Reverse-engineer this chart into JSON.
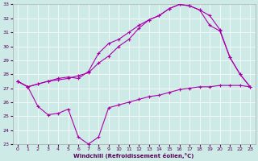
{
  "xlabel": "Windchill (Refroidissement éolien,°C)",
  "ylim": [
    23,
    33
  ],
  "xlim": [
    -0.5,
    23.5
  ],
  "yticks": [
    23,
    24,
    25,
    26,
    27,
    28,
    29,
    30,
    31,
    32,
    33
  ],
  "xticks": [
    0,
    1,
    2,
    3,
    4,
    5,
    6,
    7,
    8,
    9,
    10,
    11,
    12,
    13,
    14,
    15,
    16,
    17,
    18,
    19,
    20,
    21,
    22,
    23
  ],
  "bg_color": "#ceeae6",
  "grid_color": "#ffffff",
  "line_color": "#aa00aa",
  "line1_x": [
    0,
    1,
    2,
    3,
    4,
    5,
    6,
    7,
    8,
    9,
    10,
    11,
    12,
    13,
    14,
    15,
    16,
    17,
    18,
    19,
    20,
    21,
    22,
    23
  ],
  "line1_y": [
    27.5,
    27.1,
    27.3,
    27.5,
    27.6,
    27.7,
    27.9,
    28.1,
    28.8,
    29.3,
    30.0,
    30.5,
    31.3,
    31.9,
    32.2,
    32.7,
    33.0,
    32.9,
    32.6,
    32.2,
    31.2,
    29.2,
    28.0,
    27.1
  ],
  "line2_x": [
    0,
    1,
    2,
    3,
    4,
    5,
    6,
    7,
    8,
    9,
    10,
    11,
    12,
    13,
    14,
    15,
    16,
    17,
    18,
    19,
    20,
    21,
    22,
    23
  ],
  "line2_y": [
    27.5,
    27.1,
    27.3,
    27.5,
    27.7,
    27.8,
    27.7,
    28.2,
    29.5,
    30.2,
    30.5,
    31.0,
    31.5,
    31.9,
    32.2,
    32.7,
    33.0,
    32.9,
    32.6,
    31.5,
    31.1,
    29.2,
    28.0,
    27.1
  ],
  "line3_x": [
    0,
    1,
    2,
    3,
    4,
    5,
    6,
    7,
    8,
    9,
    10,
    11,
    12,
    13,
    14,
    15,
    16,
    17,
    18,
    19,
    20,
    21,
    22,
    23
  ],
  "line3_y": [
    27.5,
    27.1,
    25.7,
    25.1,
    25.2,
    25.5,
    23.5,
    23.0,
    23.5,
    25.6,
    25.8,
    26.0,
    26.2,
    26.4,
    26.5,
    26.7,
    26.9,
    27.0,
    27.1,
    27.1,
    27.2,
    27.2,
    27.2,
    27.1
  ]
}
